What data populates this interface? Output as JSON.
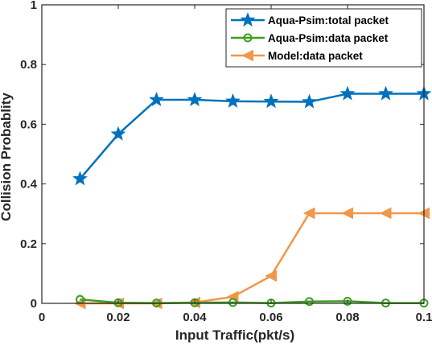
{
  "chart_data": {
    "type": "line",
    "title": "",
    "xlabel": "Input Traffic(pkt/s)",
    "ylabel": "Collision Probablity",
    "xlim": [
      0,
      0.1
    ],
    "ylim": [
      0,
      1
    ],
    "xticks": [
      0,
      0.02,
      0.04,
      0.06,
      0.08,
      0.1
    ],
    "xtick_labels": [
      "0",
      "0.02",
      "0.04",
      "0.06",
      "0.08",
      "0.1"
    ],
    "yticks": [
      0,
      0.2,
      0.4,
      0.6,
      0.8,
      1
    ],
    "ytick_labels": [
      "0",
      "0.2",
      "0.4",
      "0.6",
      "0.8",
      "1"
    ],
    "grid": false,
    "legend_position": "top-right",
    "x": [
      0.01,
      0.02,
      0.03,
      0.04,
      0.05,
      0.06,
      0.07,
      0.08,
      0.09,
      0.1
    ],
    "series": [
      {
        "name": "Aqua-Psim:total packet",
        "color": "#0072BD",
        "marker": "star",
        "values": [
          0.417,
          0.567,
          0.682,
          0.682,
          0.677,
          0.676,
          0.675,
          0.702,
          0.702,
          0.702
        ]
      },
      {
        "name": "Aqua-Psim:data packet",
        "color": "#3C9E1E",
        "marker": "circle",
        "values": [
          0.013,
          0.002,
          0.001,
          0.002,
          0.003,
          0.001,
          0.006,
          0.007,
          0.001,
          0.001
        ]
      },
      {
        "name": "Model:data packet",
        "color": "#F0974A",
        "marker": "triangle-left",
        "values": [
          0.0,
          0.0,
          0.0,
          0.003,
          0.022,
          0.092,
          0.302,
          0.302,
          0.302,
          0.302
        ]
      }
    ]
  }
}
